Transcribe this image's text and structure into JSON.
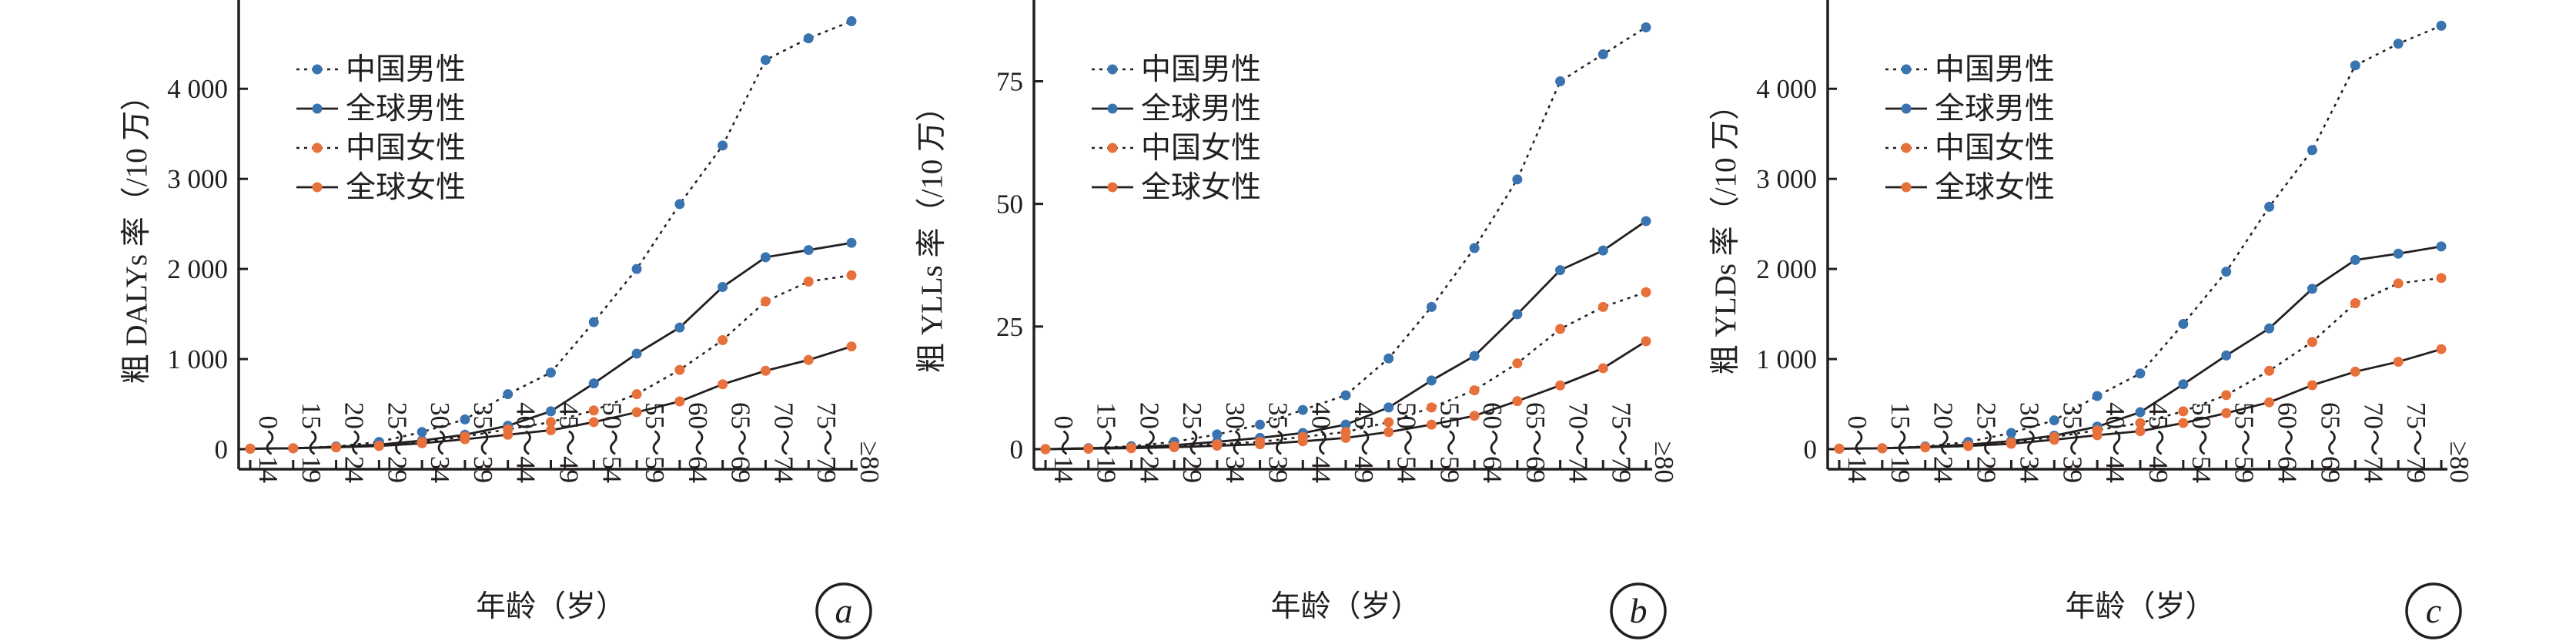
{
  "colors": {
    "china_male": "#3a74b0",
    "global_male": "#3a74b0",
    "china_female": "#e8703a",
    "global_female": "#e8703a",
    "axis": "#231f20"
  },
  "chart_data": [
    {
      "type": "line",
      "panel_label": "a",
      "xlabel": "年龄（岁）",
      "ylabel": "粗 DALYs 率（/10 万）",
      "categories": [
        "0～14",
        "15～19",
        "20～24",
        "25～29",
        "30～34",
        "35～39",
        "40～44",
        "45～49",
        "50～54",
        "55～59",
        "60～64",
        "65～69",
        "70～74",
        "75～79",
        "≥80"
      ],
      "ylim": [
        0,
        4900
      ],
      "yticks": [
        0,
        1000,
        2000,
        3000,
        4000
      ],
      "ytick_labels": [
        "0",
        "1 000",
        "2 000",
        "3 000",
        "4 000"
      ],
      "legend_position": "top-left",
      "series": [
        {
          "name": "中国男性",
          "style": "dotted",
          "color": "#3a74b0",
          "values": [
            5,
            10,
            30,
            80,
            190,
            330,
            610,
            850,
            1410,
            2000,
            2720,
            3370,
            4320,
            4560,
            4750
          ]
        },
        {
          "name": "全球男性",
          "style": "solid",
          "color": "#3a74b0",
          "values": [
            5,
            10,
            25,
            50,
            95,
            160,
            260,
            420,
            730,
            1060,
            1350,
            1800,
            2130,
            2210,
            2290
          ]
        },
        {
          "name": "中国女性",
          "style": "dotted",
          "color": "#e8703a",
          "values": [
            5,
            10,
            20,
            40,
            80,
            140,
            220,
            300,
            430,
            610,
            880,
            1210,
            1640,
            1860,
            1930
          ]
        },
        {
          "name": "全球女性",
          "style": "solid",
          "color": "#e8703a",
          "values": [
            5,
            10,
            20,
            35,
            65,
            110,
            160,
            210,
            300,
            410,
            530,
            720,
            870,
            990,
            1140
          ]
        }
      ]
    },
    {
      "type": "line",
      "panel_label": "b",
      "xlabel": "年龄（岁）",
      "ylabel": "粗 YLLs 率（/10 万）",
      "categories": [
        "0～14",
        "15～19",
        "20～24",
        "25～29",
        "30～34",
        "35～39",
        "40～44",
        "45～49",
        "50～54",
        "55～59",
        "60～64",
        "65～69",
        "70～74",
        "75～79",
        "≥80"
      ],
      "ylim": [
        0,
        90
      ],
      "yticks": [
        0,
        25,
        50,
        75
      ],
      "ytick_labels": [
        "0",
        "25",
        "50",
        "75"
      ],
      "legend_position": "top-left",
      "series": [
        {
          "name": "中国男性",
          "style": "dotted",
          "color": "#3a74b0",
          "values": [
            0,
            0.2,
            0.6,
            1.5,
            3,
            5,
            8,
            11,
            18.5,
            29,
            41,
            55,
            75,
            80.5,
            86
          ]
        },
        {
          "name": "全球男性",
          "style": "solid",
          "color": "#3a74b0",
          "values": [
            0,
            0.2,
            0.4,
            0.8,
            1.5,
            2.3,
            3.3,
            5,
            8.5,
            14,
            19,
            27.5,
            36.5,
            40.5,
            46.5
          ]
        },
        {
          "name": "中国女性",
          "style": "dotted",
          "color": "#e8703a",
          "values": [
            0,
            0.1,
            0.3,
            0.6,
            1.0,
            1.5,
            2.5,
            3.5,
            5.5,
            8.5,
            12,
            17.5,
            24.5,
            29,
            32
          ]
        },
        {
          "name": "全球女性",
          "style": "solid",
          "color": "#e8703a",
          "values": [
            0,
            0.1,
            0.2,
            0.4,
            0.7,
            1.0,
            1.6,
            2.3,
            3.5,
            5,
            6.8,
            9.8,
            13,
            16.5,
            22
          ]
        }
      ]
    },
    {
      "type": "line",
      "panel_label": "c",
      "xlabel": "年龄（岁）",
      "ylabel": "粗 YLDs 率（/10 万）",
      "categories": [
        "0～14",
        "15～19",
        "20～24",
        "25～29",
        "30～34",
        "35～39",
        "40～44",
        "45～49",
        "50～54",
        "55～59",
        "60～64",
        "65～69",
        "70～74",
        "75～79",
        "≥80"
      ],
      "ylim": [
        0,
        4900
      ],
      "yticks": [
        0,
        1000,
        2000,
        3000,
        4000
      ],
      "ytick_labels": [
        "0",
        "1 000",
        "2 000",
        "3 000",
        "4 000"
      ],
      "legend_position": "top-left",
      "series": [
        {
          "name": "中国男性",
          "style": "dotted",
          "color": "#3a74b0",
          "values": [
            5,
            10,
            30,
            80,
            180,
            320,
            590,
            840,
            1390,
            1970,
            2690,
            3320,
            4260,
            4500,
            4700
          ]
        },
        {
          "name": "全球男性",
          "style": "solid",
          "color": "#3a74b0",
          "values": [
            5,
            10,
            25,
            50,
            90,
            150,
            250,
            410,
            720,
            1040,
            1340,
            1780,
            2100,
            2170,
            2250
          ]
        },
        {
          "name": "中国女性",
          "style": "dotted",
          "color": "#e8703a",
          "values": [
            5,
            10,
            20,
            40,
            75,
            135,
            210,
            290,
            420,
            600,
            870,
            1190,
            1620,
            1840,
            1900
          ]
        },
        {
          "name": "全球女性",
          "style": "solid",
          "color": "#e8703a",
          "values": [
            5,
            10,
            20,
            35,
            60,
            105,
            155,
            200,
            290,
            400,
            520,
            710,
            860,
            970,
            1110
          ]
        }
      ]
    }
  ]
}
